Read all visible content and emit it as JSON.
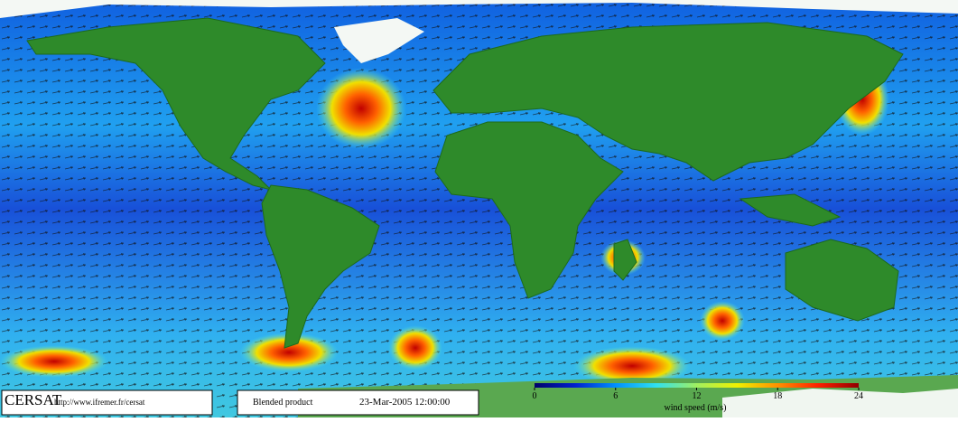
{
  "footer": {
    "logo": "CERSAT",
    "url": "http://www.ifremer.fr/cersat",
    "product": "Blended product",
    "date": "23-Mar-2005 12:00:00"
  },
  "colorbar": {
    "label": "wind speed (m/s)",
    "lim": [
      0,
      24
    ],
    "ticks": [
      0,
      6,
      12,
      18,
      24
    ],
    "colors": [
      "#00006a",
      "#0020d0",
      "#0090ff",
      "#30e0f0",
      "#a0f060",
      "#f0f000",
      "#ff9000",
      "#ff2000",
      "#900000"
    ]
  }
}
